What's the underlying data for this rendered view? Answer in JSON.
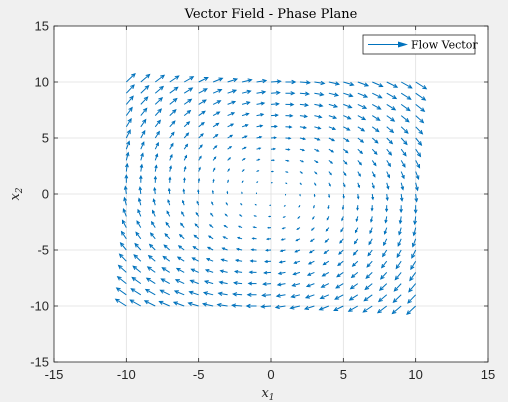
{
  "chart_data": {
    "type": "quiver",
    "title": "Vector Field - Phase Plane",
    "xlabel_base": "x",
    "xlabel_sub": "1",
    "ylabel_base": "x",
    "ylabel_sub": "2",
    "xlim": [
      -15,
      15
    ],
    "ylim": [
      -15,
      15
    ],
    "xticks": [
      -15,
      -10,
      -5,
      0,
      5,
      10,
      15
    ],
    "yticks": [
      -15,
      -10,
      -5,
      0,
      5,
      10,
      15
    ],
    "grid": true,
    "legend": {
      "position": "top-right",
      "entries": [
        "Flow Vector"
      ]
    },
    "series": [
      {
        "name": "Flow Vector",
        "color": "#0072bd",
        "grid_x": [
          -10,
          -9,
          -8,
          -7,
          -6,
          -5,
          -4,
          -3,
          -2,
          -1,
          0,
          1,
          2,
          3,
          4,
          5,
          6,
          7,
          8,
          9,
          10
        ],
        "grid_y": [
          -10,
          -9,
          -8,
          -7,
          -6,
          -5,
          -4,
          -3,
          -2,
          -1,
          0,
          1,
          2,
          3,
          4,
          5,
          6,
          7,
          8,
          9,
          10
        ],
        "field": {
          "u": "x2 + 0.1*x1",
          "v": "-x1 + 0.1*x2"
        }
      }
    ]
  }
}
